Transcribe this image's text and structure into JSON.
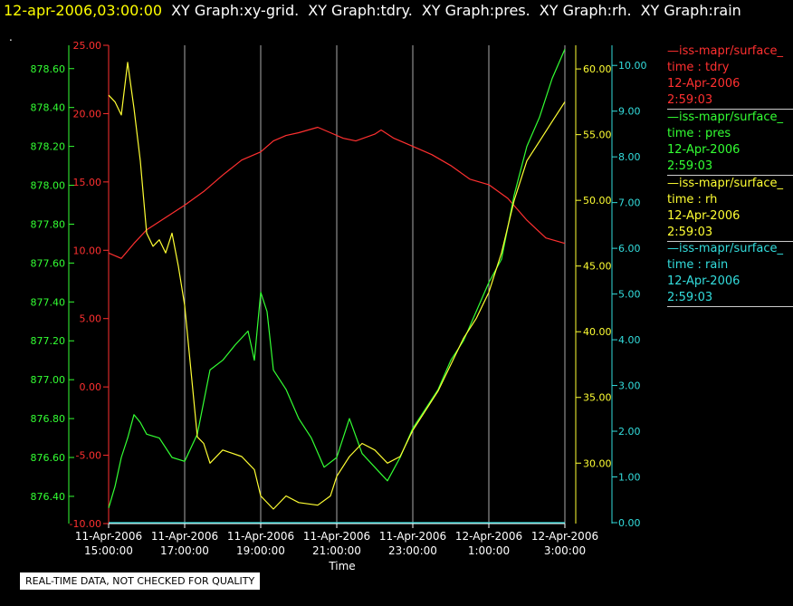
{
  "header": {
    "timestamp": "12-apr-2006,03:00:00",
    "graphs": [
      "XY Graph:xy-grid.",
      "XY Graph:tdry.",
      "XY Graph:pres.",
      "XY Graph:rh.",
      "XY Graph:rain"
    ],
    "dot": "."
  },
  "quality_note": "REAL-TIME DATA, NOT CHECKED FOR QUALITY",
  "legend": [
    {
      "name": "iss-mapr/surface_",
      "var": "time : tdry",
      "date": "12-Apr-2006",
      "time": "2:59:03",
      "color": "#ff3030"
    },
    {
      "name": "iss-mapr/surface_",
      "var": "time : pres",
      "date": "12-Apr-2006",
      "time": "2:59:03",
      "color": "#33ff33"
    },
    {
      "name": "iss-mapr/surface_",
      "var": "time : rh",
      "date": "12-Apr-2006",
      "time": "2:59:03",
      "color": "#ffff33"
    },
    {
      "name": "iss-mapr/surface_",
      "var": "time : rain",
      "date": "12-Apr-2006",
      "time": "2:59:03",
      "color": "#33dddd"
    }
  ],
  "chart_data": {
    "type": "line",
    "xlabel": "Time",
    "x_range": [
      "11-Apr-2006 15:00:00",
      "12-Apr-2006 03:00:00"
    ],
    "x_ticks": [
      {
        "time": "15:00",
        "l1": "11-Apr-2006",
        "l2": "15:00:00"
      },
      {
        "time": "17:00",
        "l1": "11-Apr-2006",
        "l2": "17:00:00"
      },
      {
        "time": "19:00",
        "l1": "11-Apr-2006",
        "l2": "19:00:00"
      },
      {
        "time": "21:00",
        "l1": "11-Apr-2006",
        "l2": "21:00:00"
      },
      {
        "time": "23:00",
        "l1": "11-Apr-2006",
        "l2": "23:00:00"
      },
      {
        "time": "01:00",
        "l1": "12-Apr-2006",
        "l2": "1:00:00"
      },
      {
        "time": "03:00",
        "l1": "12-Apr-2006",
        "l2": "3:00:00"
      }
    ],
    "grid": "vertical",
    "axes": [
      {
        "id": "tdry",
        "color": "#ff3030",
        "range": [
          -10,
          25
        ],
        "ticks": [
          "-10.00",
          "-5.00",
          "0.00",
          "5.00",
          "10.00",
          "15.00",
          "20.00",
          "25.00"
        ]
      },
      {
        "id": "pres",
        "color": "#33ff33",
        "range": [
          876.26,
          878.72
        ],
        "ticks": [
          "876.40",
          "876.60",
          "876.80",
          "877.00",
          "877.20",
          "877.40",
          "877.60",
          "877.80",
          "878.00",
          "878.20",
          "878.40",
          "878.60"
        ]
      },
      {
        "id": "rh",
        "color": "#ffff33",
        "range": [
          25.4,
          61.8
        ],
        "ticks": [
          "30.00",
          "35.00",
          "40.00",
          "45.00",
          "50.00",
          "55.00",
          "60.00"
        ]
      },
      {
        "id": "rain",
        "color": "#33dddd",
        "range": [
          -0.02,
          10.44
        ],
        "ticks": [
          "0.00",
          "1.00",
          "2.00",
          "3.00",
          "4.00",
          "5.00",
          "6.00",
          "7.00",
          "8.00",
          "9.00",
          "10.00"
        ]
      }
    ],
    "series": [
      {
        "id": "tdry",
        "color": "#ff3030",
        "points": [
          [
            "15:00",
            9.8
          ],
          [
            "15:20",
            9.4
          ],
          [
            "15:40",
            10.5
          ],
          [
            "16:00",
            11.5
          ],
          [
            "16:30",
            12.4
          ],
          [
            "17:00",
            13.3
          ],
          [
            "17:30",
            14.3
          ],
          [
            "18:00",
            15.5
          ],
          [
            "18:30",
            16.6
          ],
          [
            "19:00",
            17.2
          ],
          [
            "19:20",
            18.0
          ],
          [
            "19:40",
            18.4
          ],
          [
            "20:00",
            18.6
          ],
          [
            "20:30",
            19.0
          ],
          [
            "20:50",
            18.6
          ],
          [
            "21:10",
            18.2
          ],
          [
            "21:30",
            18.0
          ],
          [
            "22:00",
            18.5
          ],
          [
            "22:10",
            18.8
          ],
          [
            "22:30",
            18.2
          ],
          [
            "23:00",
            17.6
          ],
          [
            "23:30",
            17.0
          ],
          [
            "00:00",
            16.2
          ],
          [
            "00:30",
            15.2
          ],
          [
            "01:00",
            14.8
          ],
          [
            "01:30",
            13.8
          ],
          [
            "02:00",
            12.2
          ],
          [
            "02:30",
            10.9
          ],
          [
            "03:00",
            10.5
          ]
        ]
      },
      {
        "id": "pres",
        "color": "#33ff33",
        "points": [
          [
            "15:00",
            876.34
          ],
          [
            "15:10",
            876.45
          ],
          [
            "15:20",
            876.6
          ],
          [
            "15:30",
            876.7
          ],
          [
            "15:40",
            876.82
          ],
          [
            "15:50",
            876.78
          ],
          [
            "16:00",
            876.72
          ],
          [
            "16:20",
            876.7
          ],
          [
            "16:40",
            876.6
          ],
          [
            "17:00",
            876.58
          ],
          [
            "17:20",
            876.72
          ],
          [
            "17:40",
            877.05
          ],
          [
            "18:00",
            877.1
          ],
          [
            "18:20",
            877.18
          ],
          [
            "18:40",
            877.25
          ],
          [
            "18:50",
            877.1
          ],
          [
            "19:00",
            877.45
          ],
          [
            "19:10",
            877.35
          ],
          [
            "19:20",
            877.05
          ],
          [
            "19:40",
            876.95
          ],
          [
            "20:00",
            876.8
          ],
          [
            "20:20",
            876.7
          ],
          [
            "20:40",
            876.55
          ],
          [
            "21:00",
            876.6
          ],
          [
            "21:20",
            876.8
          ],
          [
            "21:40",
            876.62
          ],
          [
            "22:00",
            876.55
          ],
          [
            "22:20",
            876.48
          ],
          [
            "22:40",
            876.6
          ],
          [
            "23:00",
            876.75
          ],
          [
            "23:20",
            876.85
          ],
          [
            "23:40",
            876.95
          ],
          [
            "00:00",
            877.1
          ],
          [
            "00:20",
            877.2
          ],
          [
            "00:40",
            877.35
          ],
          [
            "01:00",
            877.5
          ],
          [
            "01:20",
            877.62
          ],
          [
            "01:40",
            877.95
          ],
          [
            "02:00",
            878.2
          ],
          [
            "02:20",
            878.35
          ],
          [
            "02:40",
            878.55
          ],
          [
            "03:00",
            878.7
          ]
        ]
      },
      {
        "id": "rh",
        "color": "#ffff33",
        "points": [
          [
            "15:00",
            58.0
          ],
          [
            "15:10",
            57.5
          ],
          [
            "15:20",
            56.5
          ],
          [
            "15:30",
            60.5
          ],
          [
            "15:40",
            57.0
          ],
          [
            "15:50",
            53.0
          ],
          [
            "16:00",
            47.5
          ],
          [
            "16:10",
            46.5
          ],
          [
            "16:20",
            47.0
          ],
          [
            "16:30",
            46.0
          ],
          [
            "16:40",
            47.5
          ],
          [
            "16:50",
            45.0
          ],
          [
            "17:00",
            42.0
          ],
          [
            "17:10",
            37.0
          ],
          [
            "17:20",
            32.0
          ],
          [
            "17:30",
            31.5
          ],
          [
            "17:40",
            30.0
          ],
          [
            "18:00",
            31.0
          ],
          [
            "18:30",
            30.5
          ],
          [
            "18:50",
            29.5
          ],
          [
            "19:00",
            27.5
          ],
          [
            "19:20",
            26.5
          ],
          [
            "19:40",
            27.5
          ],
          [
            "20:00",
            27.0
          ],
          [
            "20:30",
            26.8
          ],
          [
            "20:50",
            27.5
          ],
          [
            "21:00",
            29.0
          ],
          [
            "21:20",
            30.5
          ],
          [
            "21:40",
            31.5
          ],
          [
            "22:00",
            31.0
          ],
          [
            "22:20",
            30.0
          ],
          [
            "22:40",
            30.5
          ],
          [
            "23:00",
            32.5
          ],
          [
            "23:20",
            34.0
          ],
          [
            "23:40",
            35.5
          ],
          [
            "00:00",
            37.5
          ],
          [
            "00:20",
            39.5
          ],
          [
            "00:40",
            41.0
          ],
          [
            "01:00",
            43.0
          ],
          [
            "01:20",
            46.0
          ],
          [
            "01:40",
            50.0
          ],
          [
            "02:00",
            53.0
          ],
          [
            "02:20",
            54.5
          ],
          [
            "02:40",
            56.0
          ],
          [
            "03:00",
            57.5
          ]
        ]
      },
      {
        "id": "rain",
        "color": "#33dddd",
        "points": [
          [
            "15:00",
            0.0
          ],
          [
            "03:00",
            0.0
          ]
        ]
      }
    ]
  }
}
